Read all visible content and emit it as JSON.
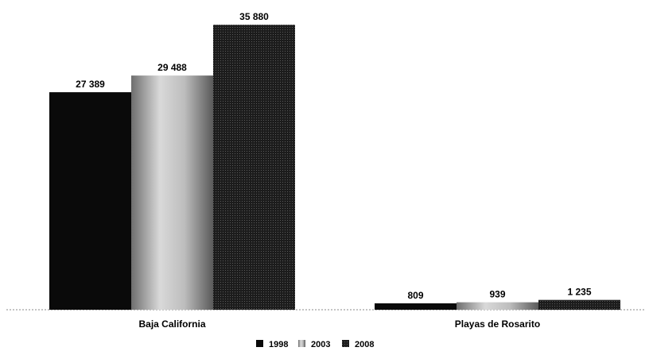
{
  "chart_data": {
    "type": "bar",
    "categories": [
      "Baja California",
      "Playas de Rosarito"
    ],
    "series": [
      {
        "name": "1998",
        "values": [
          27389,
          809
        ],
        "labels": [
          "27 389",
          "809"
        ],
        "color": "#0a0a0a"
      },
      {
        "name": "2003",
        "values": [
          29488,
          939
        ],
        "labels": [
          "29 488",
          "939"
        ],
        "color": "#a8a8a8"
      },
      {
        "name": "2008",
        "values": [
          35880,
          1235
        ],
        "labels": [
          "35 880",
          "1 235"
        ],
        "color": "#2a2a2a"
      }
    ],
    "title": "",
    "xlabel": "",
    "ylabel": "",
    "ylim": [
      0,
      36000
    ],
    "grid": false,
    "legend": "bottom-center"
  }
}
